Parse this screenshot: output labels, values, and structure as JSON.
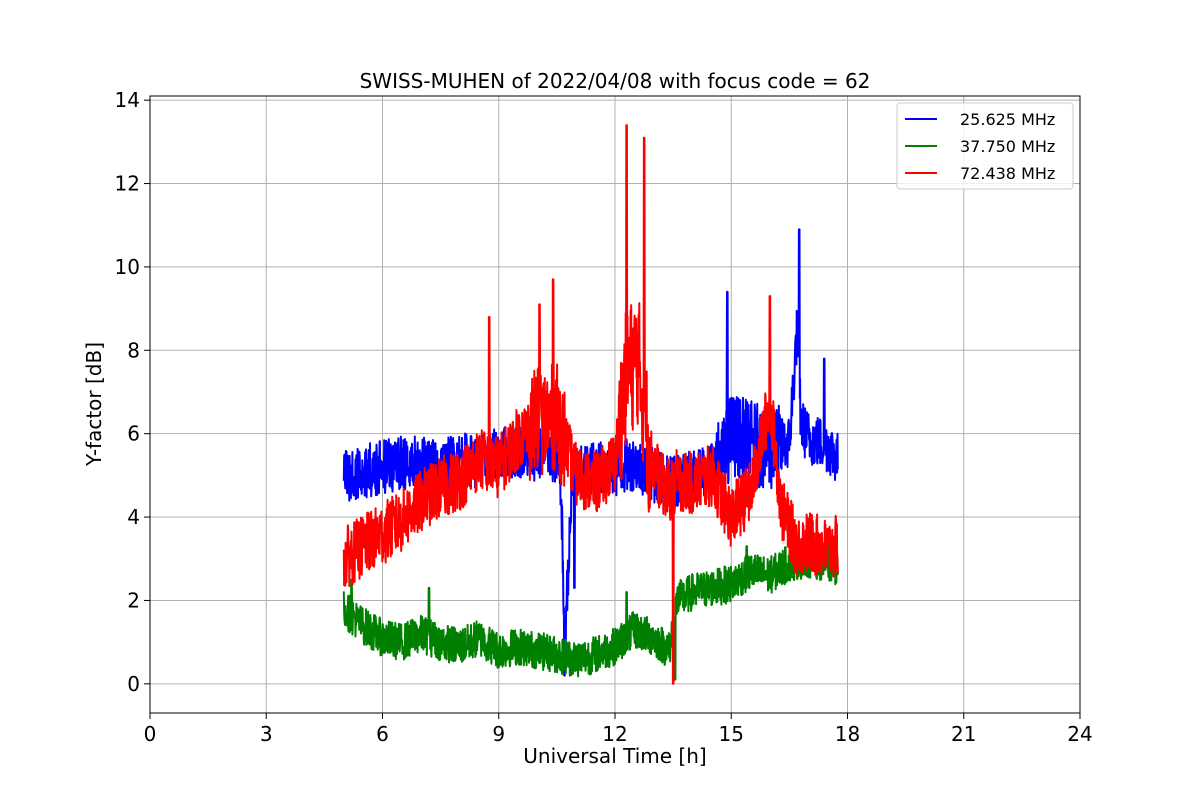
{
  "chart_data": {
    "type": "line",
    "title": "SWISS-MUHEN of 2022/04/08 with focus code = 62",
    "xlabel": "Universal Time [h]",
    "ylabel": "Y-factor [dB]",
    "xlim": [
      0,
      24
    ],
    "ylim": [
      -0.7,
      14.1
    ],
    "xticks": [
      0,
      3,
      6,
      9,
      12,
      15,
      18,
      21,
      24
    ],
    "yticks": [
      0,
      2,
      4,
      6,
      8,
      10,
      12,
      14
    ],
    "grid": true,
    "legend_position": "top-right",
    "series": [
      {
        "name": "25.625 MHz",
        "color": "#0000ff",
        "x": [
          5.0,
          5.5,
          6.0,
          6.5,
          7.0,
          7.5,
          8.0,
          8.5,
          9.0,
          9.5,
          10.0,
          10.3,
          10.6,
          10.7,
          10.9,
          11.0,
          11.5,
          12.0,
          12.5,
          13.0,
          13.5,
          14.0,
          14.5,
          14.8,
          15.0,
          15.5,
          16.0,
          16.5,
          16.7,
          16.8,
          17.0,
          17.5,
          17.75
        ],
        "y": [
          5.0,
          5.1,
          5.2,
          5.3,
          5.3,
          5.2,
          5.4,
          5.3,
          5.5,
          5.6,
          5.5,
          5.6,
          5.0,
          1.0,
          4.8,
          5.0,
          5.2,
          5.1,
          5.3,
          5.0,
          4.8,
          5.0,
          5.2,
          5.4,
          6.0,
          5.8,
          5.6,
          5.8,
          8.5,
          6.2,
          5.9,
          5.7,
          5.4
        ],
        "spikes": [
          [
            10.6,
            4.3
          ],
          [
            10.7,
            0.2
          ],
          [
            10.95,
            2.3
          ],
          [
            14.9,
            9.4
          ],
          [
            16.75,
            10.9
          ],
          [
            17.4,
            7.8
          ]
        ]
      },
      {
        "name": "37.750 MHz",
        "color": "#008000",
        "x": [
          5.0,
          5.5,
          6.0,
          6.5,
          7.0,
          7.5,
          8.0,
          8.5,
          9.0,
          9.5,
          10.0,
          10.5,
          11.0,
          11.5,
          12.0,
          12.5,
          13.0,
          13.4,
          13.6,
          14.0,
          14.5,
          15.0,
          15.5,
          16.0,
          16.5,
          17.0,
          17.5,
          17.75
        ],
        "y": [
          1.8,
          1.4,
          1.1,
          1.0,
          1.2,
          1.0,
          0.9,
          1.1,
          0.8,
          0.9,
          0.8,
          0.7,
          0.6,
          0.7,
          0.9,
          1.3,
          1.1,
          0.8,
          2.0,
          2.2,
          2.3,
          2.4,
          2.7,
          2.6,
          2.9,
          3.0,
          2.9,
          2.8
        ],
        "spikes": [
          [
            5.2,
            2.5
          ],
          [
            7.2,
            2.3
          ],
          [
            12.3,
            2.2
          ],
          [
            13.55,
            0.1
          ],
          [
            15.4,
            3.3
          ]
        ]
      },
      {
        "name": "72.438 MHz",
        "color": "#ff0000",
        "x": [
          5.0,
          5.5,
          6.0,
          6.5,
          7.0,
          7.5,
          8.0,
          8.5,
          9.0,
          9.5,
          10.0,
          10.5,
          11.0,
          11.5,
          12.0,
          12.3,
          12.6,
          12.9,
          13.2,
          13.5,
          13.6,
          14.0,
          14.5,
          15.0,
          15.5,
          16.0,
          16.3,
          16.7,
          17.0,
          17.5,
          17.75
        ],
        "y": [
          3.0,
          3.3,
          3.6,
          3.9,
          4.4,
          4.7,
          4.9,
          5.4,
          5.2,
          5.9,
          6.3,
          6.4,
          5.0,
          4.8,
          5.3,
          7.5,
          7.8,
          5.5,
          4.8,
          4.6,
          4.9,
          4.8,
          5.0,
          4.0,
          4.6,
          6.8,
          4.2,
          3.3,
          3.4,
          3.2,
          3.3
        ],
        "spikes": [
          [
            8.75,
            8.8
          ],
          [
            10.05,
            9.1
          ],
          [
            10.4,
            9.7
          ],
          [
            12.3,
            13.4
          ],
          [
            12.75,
            13.1
          ],
          [
            13.5,
            0.0
          ],
          [
            16.0,
            9.3
          ]
        ]
      }
    ]
  }
}
